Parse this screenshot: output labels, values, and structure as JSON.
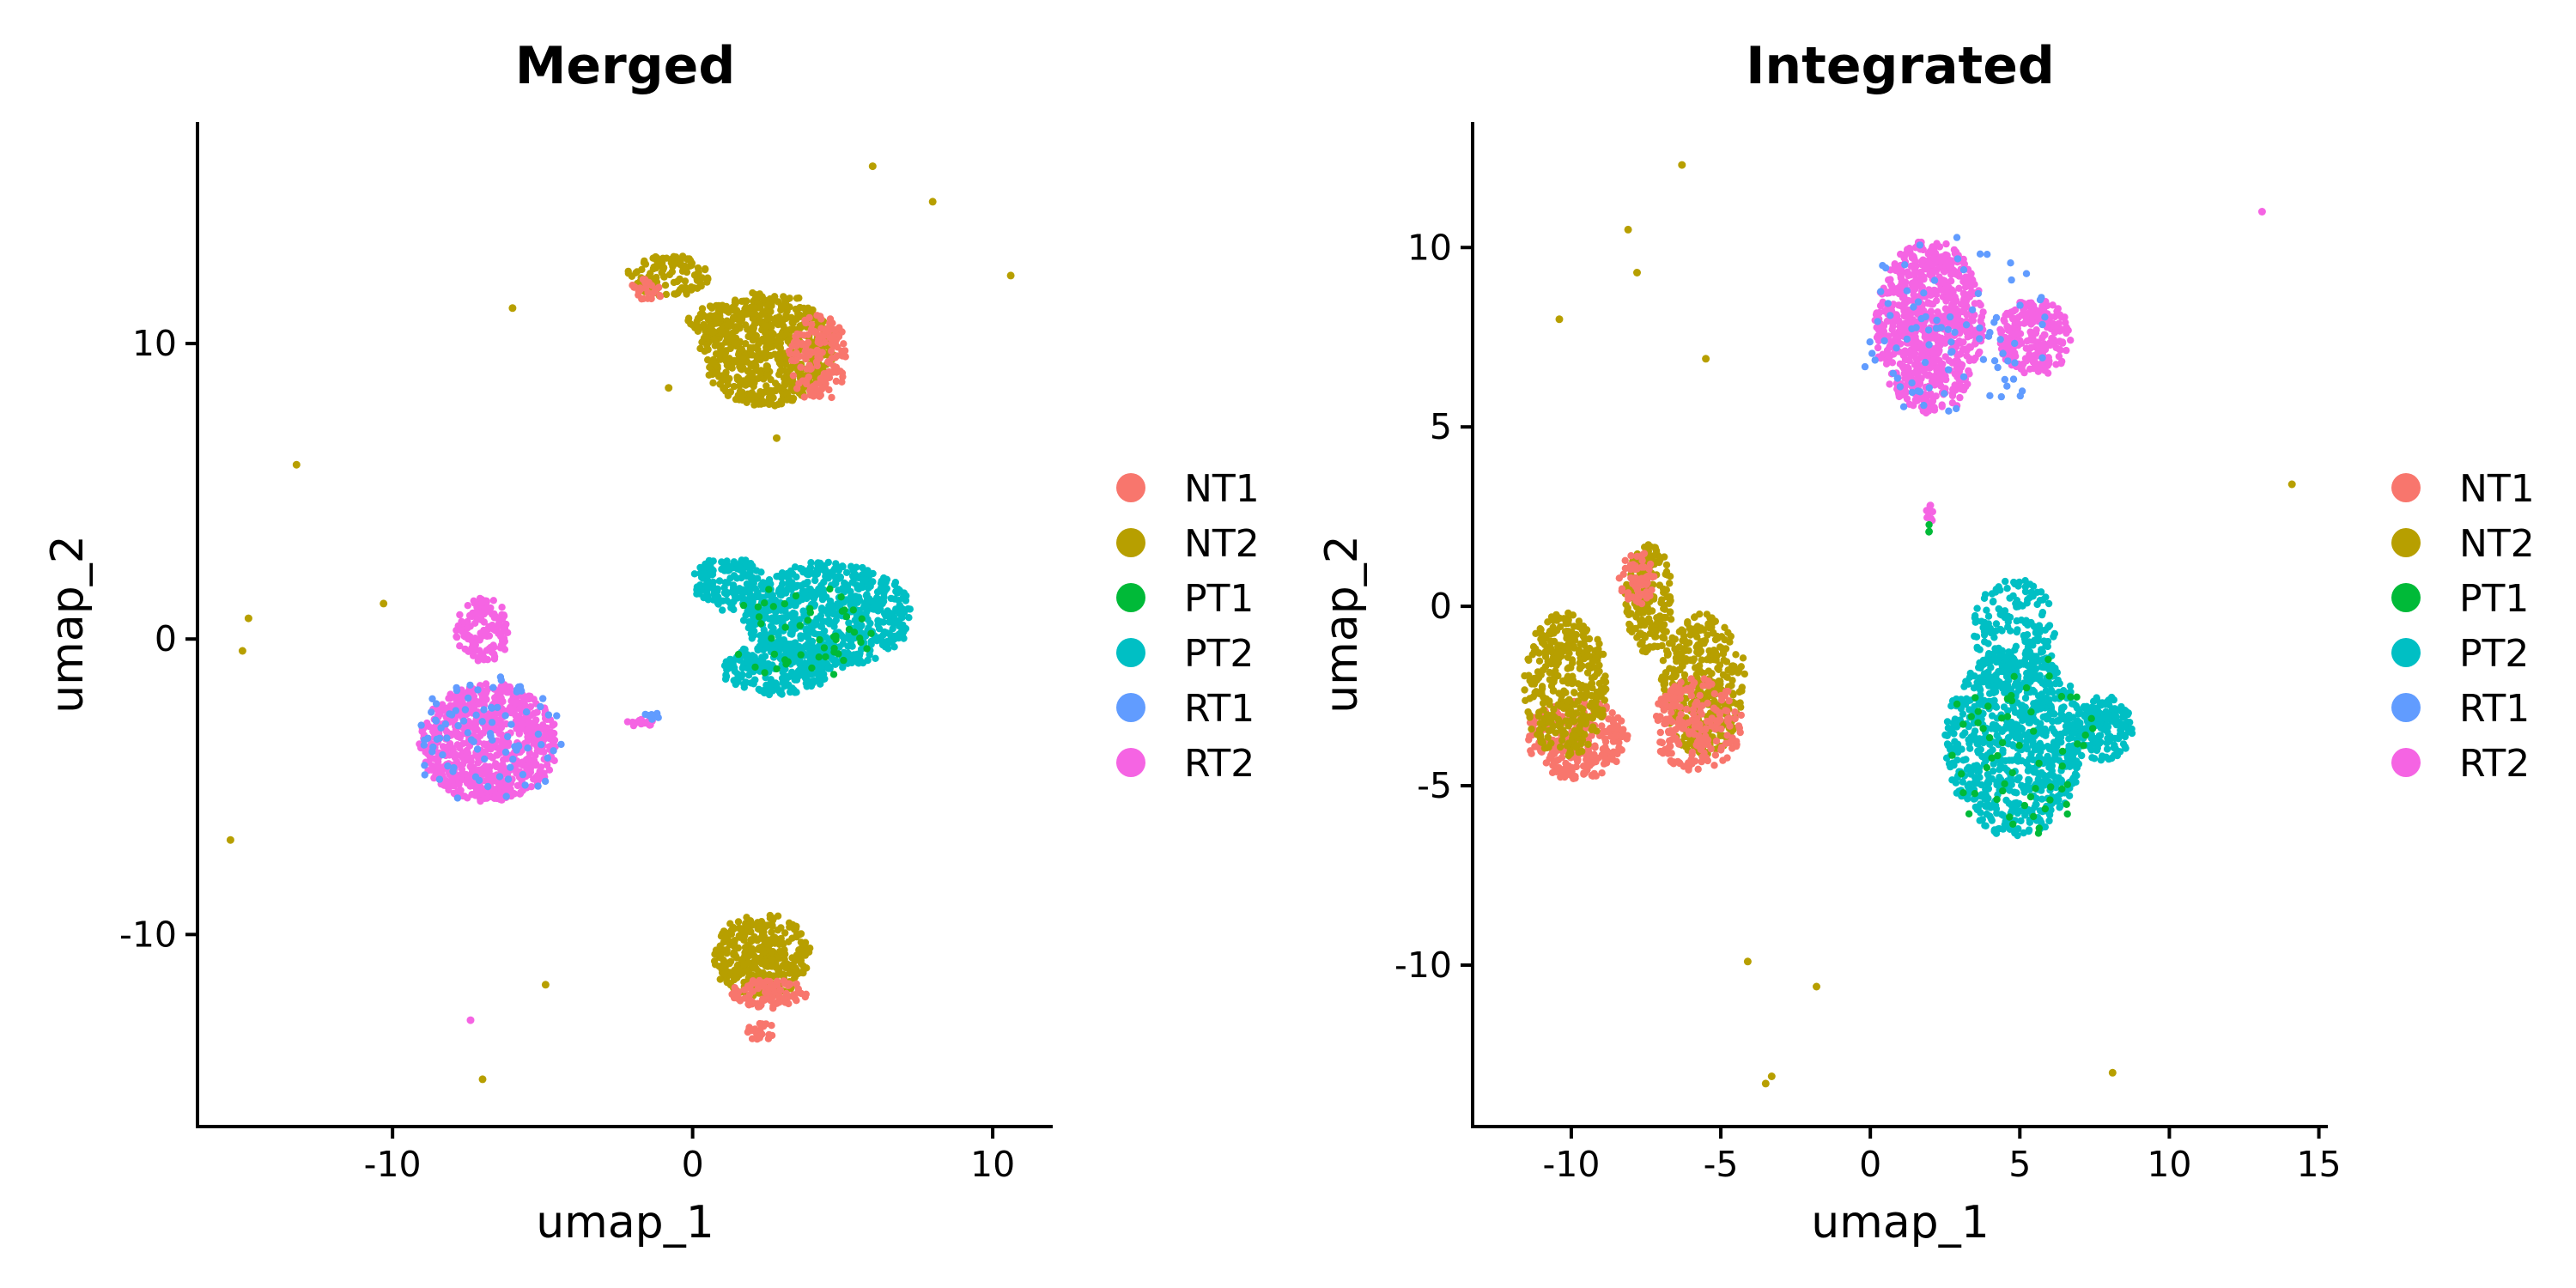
{
  "chart_data": [
    {
      "type": "scatter",
      "title": "Merged",
      "xlabel": "umap_1",
      "ylabel": "umap_2",
      "xlim": [
        -16.5,
        12
      ],
      "ylim": [
        -16.5,
        17.5
      ],
      "xticks": [
        -10,
        0,
        10
      ],
      "yticks": [
        -10,
        0,
        10
      ],
      "grid": false,
      "legend_position": "right",
      "legend": [
        "NT1",
        "NT2",
        "PT1",
        "PT2",
        "RT1",
        "RT2"
      ],
      "clusters": [
        {
          "group": "NT2",
          "cx": 2.5,
          "cy": 9.8,
          "rx": 2.2,
          "ry": 1.9,
          "n": 650
        },
        {
          "group": "NT1",
          "cx": 4.2,
          "cy": 9.5,
          "rx": 1.0,
          "ry": 1.5,
          "n": 140
        },
        {
          "group": "NT2",
          "cx": -0.8,
          "cy": 12.3,
          "rx": 1.4,
          "ry": 0.7,
          "n": 120
        },
        {
          "group": "NT1",
          "cx": -1.5,
          "cy": 11.8,
          "rx": 0.6,
          "ry": 0.4,
          "n": 25
        },
        {
          "group": "NT2",
          "cx": 0.8,
          "cy": 10.8,
          "rx": 1.0,
          "ry": 0.5,
          "n": 60
        },
        {
          "group": "PT2",
          "cx": 4.5,
          "cy": 0.8,
          "rx": 2.8,
          "ry": 1.8,
          "n": 700
        },
        {
          "group": "PT2",
          "cx": 2.8,
          "cy": -1.0,
          "rx": 1.8,
          "ry": 0.9,
          "n": 220
        },
        {
          "group": "PT2",
          "cx": 1.2,
          "cy": 1.9,
          "rx": 1.2,
          "ry": 0.9,
          "n": 160
        },
        {
          "group": "PT1",
          "cx": 3.5,
          "cy": 0.3,
          "rx": 2.5,
          "ry": 1.8,
          "n": 50
        },
        {
          "group": "RT2",
          "cx": -6.8,
          "cy": -3.5,
          "rx": 2.3,
          "ry": 2.0,
          "n": 750
        },
        {
          "group": "RT2",
          "cx": -7.0,
          "cy": 0.3,
          "rx": 0.9,
          "ry": 1.1,
          "n": 140
        },
        {
          "group": "RT1",
          "cx": -6.8,
          "cy": -3.5,
          "rx": 2.6,
          "ry": 2.3,
          "n": 90
        },
        {
          "group": "NT2",
          "cx": 2.3,
          "cy": -10.7,
          "rx": 1.6,
          "ry": 1.4,
          "n": 350
        },
        {
          "group": "NT1",
          "cx": 2.5,
          "cy": -12.0,
          "rx": 1.3,
          "ry": 0.5,
          "n": 90
        },
        {
          "group": "NT1",
          "cx": 2.3,
          "cy": -13.3,
          "rx": 0.5,
          "ry": 0.3,
          "n": 25
        },
        {
          "group": "RT2",
          "cx": -1.8,
          "cy": -2.8,
          "rx": 0.6,
          "ry": 0.15,
          "n": 15
        },
        {
          "group": "RT1",
          "cx": -1.4,
          "cy": -2.6,
          "rx": 0.4,
          "ry": 0.12,
          "n": 8
        }
      ],
      "outliers": [
        {
          "group": "NT2",
          "x": 6.0,
          "y": 16.0
        },
        {
          "group": "NT2",
          "x": 8.0,
          "y": 14.8
        },
        {
          "group": "NT2",
          "x": 10.6,
          "y": 12.3
        },
        {
          "group": "NT2",
          "x": -6.0,
          "y": 11.2
        },
        {
          "group": "NT2",
          "x": -13.2,
          "y": 5.9
        },
        {
          "group": "NT2",
          "x": -10.3,
          "y": 1.2
        },
        {
          "group": "NT2",
          "x": -14.8,
          "y": 0.7
        },
        {
          "group": "NT2",
          "x": -15.0,
          "y": -0.4
        },
        {
          "group": "NT2",
          "x": -15.4,
          "y": -6.8
        },
        {
          "group": "NT2",
          "x": -4.9,
          "y": -11.7
        },
        {
          "group": "NT2",
          "x": -7.0,
          "y": -14.9
        },
        {
          "group": "RT2",
          "x": -7.4,
          "y": -12.9
        },
        {
          "group": "NT2",
          "x": 2.8,
          "y": 6.8
        },
        {
          "group": "NT2",
          "x": -0.8,
          "y": 8.5
        }
      ]
    },
    {
      "type": "scatter",
      "title": "Integrated",
      "xlabel": "umap_1",
      "ylabel": "umap_2",
      "xlim": [
        -13.3,
        15.3
      ],
      "ylim": [
        -14.5,
        13.5
      ],
      "xticks": [
        -10,
        -5,
        0,
        5,
        10,
        15
      ],
      "yticks": [
        -10,
        -5,
        0,
        5,
        10
      ],
      "grid": false,
      "legend_position": "right",
      "legend": [
        "NT1",
        "NT2",
        "PT1",
        "PT2",
        "RT1",
        "RT2"
      ],
      "clusters": [
        {
          "group": "RT2",
          "cx": 2.0,
          "cy": 7.8,
          "rx": 1.8,
          "ry": 2.4,
          "n": 800
        },
        {
          "group": "RT2",
          "cx": 5.5,
          "cy": 7.5,
          "rx": 1.2,
          "ry": 1.1,
          "n": 220
        },
        {
          "group": "RT1",
          "cx": 2.8,
          "cy": 7.7,
          "rx": 3.2,
          "ry": 2.6,
          "n": 90
        },
        {
          "group": "NT1",
          "cx": -9.8,
          "cy": -3.7,
          "rx": 1.7,
          "ry": 1.1,
          "n": 260
        },
        {
          "group": "NT2",
          "cx": -10.2,
          "cy": -2.2,
          "rx": 1.4,
          "ry": 2.0,
          "n": 380
        },
        {
          "group": "NT2",
          "cx": -5.6,
          "cy": -2.2,
          "rx": 1.4,
          "ry": 2.0,
          "n": 380
        },
        {
          "group": "NT1",
          "cx": -5.8,
          "cy": -3.3,
          "rx": 1.5,
          "ry": 1.3,
          "n": 200
        },
        {
          "group": "NT2",
          "cx": -7.4,
          "cy": 0.2,
          "rx": 0.8,
          "ry": 1.5,
          "n": 180
        },
        {
          "group": "NT1",
          "cx": -7.8,
          "cy": 0.8,
          "rx": 0.6,
          "ry": 0.8,
          "n": 60
        },
        {
          "group": "PT2",
          "cx": 4.8,
          "cy": -3.8,
          "rx": 2.3,
          "ry": 2.6,
          "n": 800
        },
        {
          "group": "PT2",
          "cx": 4.8,
          "cy": -0.8,
          "rx": 1.4,
          "ry": 1.6,
          "n": 200
        },
        {
          "group": "PT2",
          "cx": 7.8,
          "cy": -3.4,
          "rx": 1.0,
          "ry": 0.9,
          "n": 180
        },
        {
          "group": "PT1",
          "cx": 5.0,
          "cy": -3.8,
          "rx": 2.5,
          "ry": 2.8,
          "n": 60
        },
        {
          "group": "RT2",
          "cx": 2.0,
          "cy": 2.6,
          "rx": 0.12,
          "ry": 0.3,
          "n": 10
        },
        {
          "group": "PT1",
          "cx": 2.0,
          "cy": 2.1,
          "rx": 0.1,
          "ry": 0.2,
          "n": 4
        }
      ],
      "outliers": [
        {
          "group": "NT2",
          "x": -6.3,
          "y": 12.3
        },
        {
          "group": "NT2",
          "x": -8.1,
          "y": 10.5
        },
        {
          "group": "NT2",
          "x": -7.8,
          "y": 9.3
        },
        {
          "group": "NT2",
          "x": -10.4,
          "y": 8.0
        },
        {
          "group": "NT2",
          "x": -5.5,
          "y": 6.9
        },
        {
          "group": "RT2",
          "x": 13.1,
          "y": 11.0
        },
        {
          "group": "NT2",
          "x": 14.1,
          "y": 3.4
        },
        {
          "group": "NT2",
          "x": -4.1,
          "y": -9.9
        },
        {
          "group": "NT2",
          "x": -1.8,
          "y": -10.6
        },
        {
          "group": "NT2",
          "x": -3.3,
          "y": -13.1
        },
        {
          "group": "NT2",
          "x": -3.5,
          "y": -13.3
        },
        {
          "group": "NT2",
          "x": 8.1,
          "y": -13.0
        }
      ]
    }
  ],
  "legend": {
    "items": [
      {
        "label": "NT1",
        "color": "#F8766D"
      },
      {
        "label": "NT2",
        "color": "#B79F00"
      },
      {
        "label": "PT1",
        "color": "#00BA38"
      },
      {
        "label": "PT2",
        "color": "#00BFC4"
      },
      {
        "label": "RT1",
        "color": "#619CFF"
      },
      {
        "label": "RT2",
        "color": "#F564E3"
      }
    ]
  }
}
